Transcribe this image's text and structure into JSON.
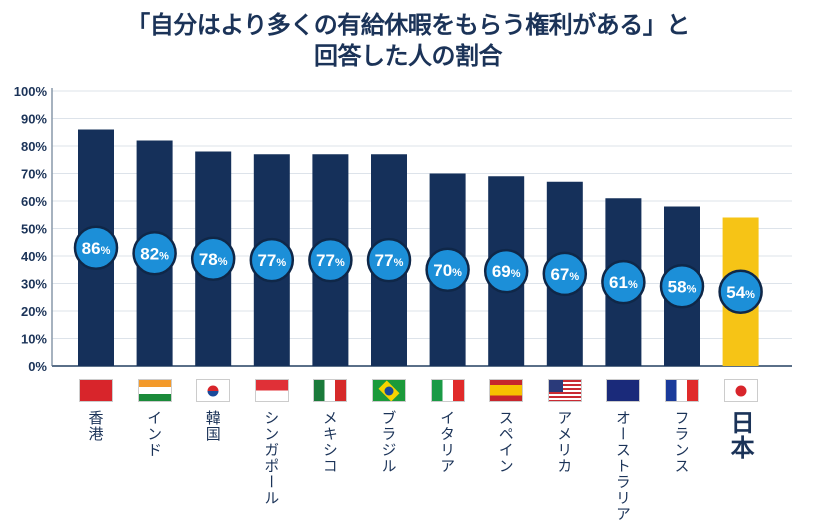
{
  "chart_data": {
    "type": "bar",
    "title": [
      "「自分はより多くの有給休暇をもらう権利がある」と",
      "回答した人の割合"
    ],
    "categories": [
      "香港",
      "インド",
      "韓国",
      "シンガポール",
      "メキシコ",
      "ブラジル",
      "イタリア",
      "スペイン",
      "アメリカ",
      "オーストラリア",
      "フランス",
      "日本"
    ],
    "values": [
      86,
      82,
      78,
      77,
      77,
      77,
      70,
      69,
      67,
      61,
      58,
      54
    ],
    "value_suffix": "%",
    "ylim": [
      0,
      100
    ],
    "yticks": [
      "0%",
      "10%",
      "20%",
      "30%",
      "40%",
      "50%",
      "60%",
      "70%",
      "80%",
      "90%",
      "100%"
    ],
    "grid": true,
    "highlight_category": "日本",
    "colors": {
      "bar": "#15305a",
      "highlight": "#f6c416",
      "label_circle": "#1c8fd8",
      "title": "#1b3358"
    },
    "flags": [
      "hong-kong-flag",
      "india-flag",
      "south-korea-flag",
      "singapore-flag",
      "mexico-flag",
      "brazil-flag",
      "italy-flag",
      "spain-flag",
      "usa-flag",
      "australia-flag",
      "france-flag",
      "japan-flag"
    ]
  }
}
